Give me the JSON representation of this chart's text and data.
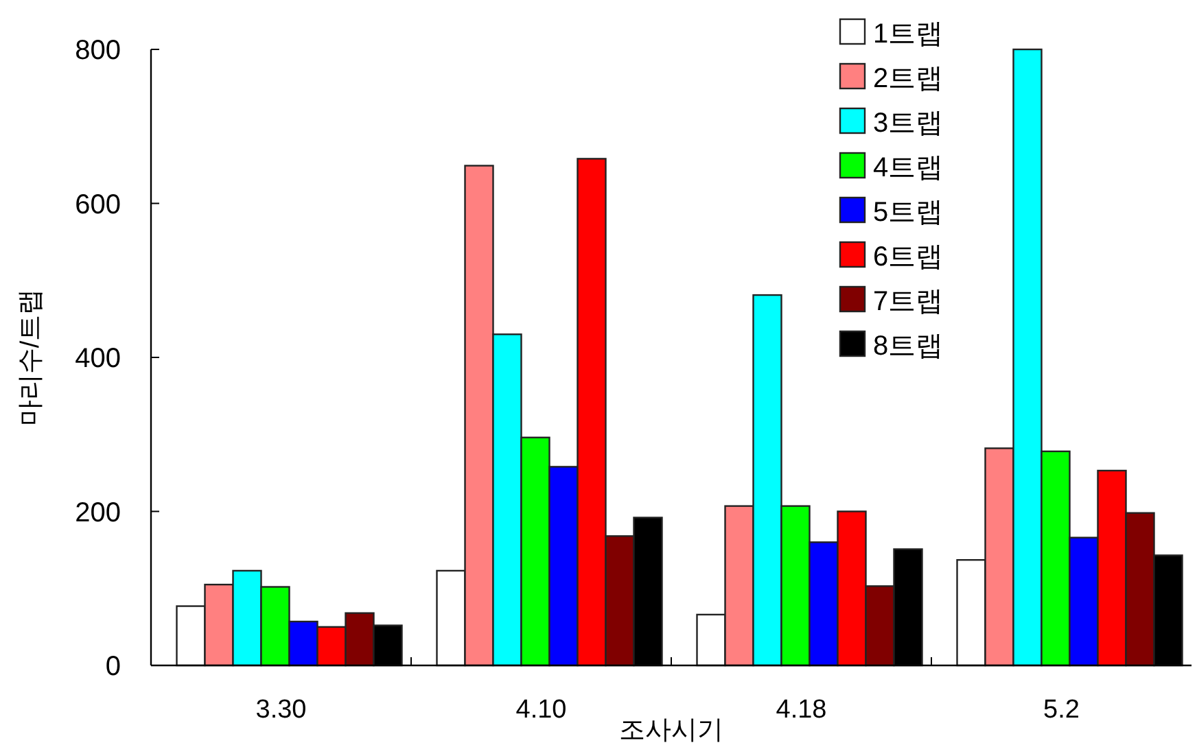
{
  "chart_data": {
    "type": "bar",
    "xlabel": "조사시기",
    "ylabel": "마리수/트랩",
    "categories": [
      "3.30",
      "4.10",
      "4.18",
      "5.2"
    ],
    "ylim": [
      0,
      800
    ],
    "yticks": [
      0,
      200,
      400,
      600,
      800
    ],
    "legend": "top right",
    "grid": false,
    "series": [
      {
        "name": "1트랩",
        "color": "#ffffff",
        "values": [
          77,
          123,
          66,
          137
        ]
      },
      {
        "name": "2트랩",
        "color": "#ff8080",
        "values": [
          105,
          649,
          207,
          282
        ]
      },
      {
        "name": "3트랩",
        "color": "#00ffff",
        "values": [
          123,
          430,
          481,
          800
        ]
      },
      {
        "name": "4트랩",
        "color": "#00ff00",
        "values": [
          102,
          296,
          207,
          278
        ]
      },
      {
        "name": "5트랩",
        "color": "#0000ff",
        "values": [
          57,
          258,
          160,
          166
        ]
      },
      {
        "name": "6트랩",
        "color": "#ff0000",
        "values": [
          50,
          658,
          200,
          253
        ]
      },
      {
        "name": "7트랩",
        "color": "#800000",
        "values": [
          68,
          168,
          103,
          198
        ]
      },
      {
        "name": "8트랩",
        "color": "#000000",
        "values": [
          52,
          192,
          151,
          143
        ]
      }
    ]
  }
}
